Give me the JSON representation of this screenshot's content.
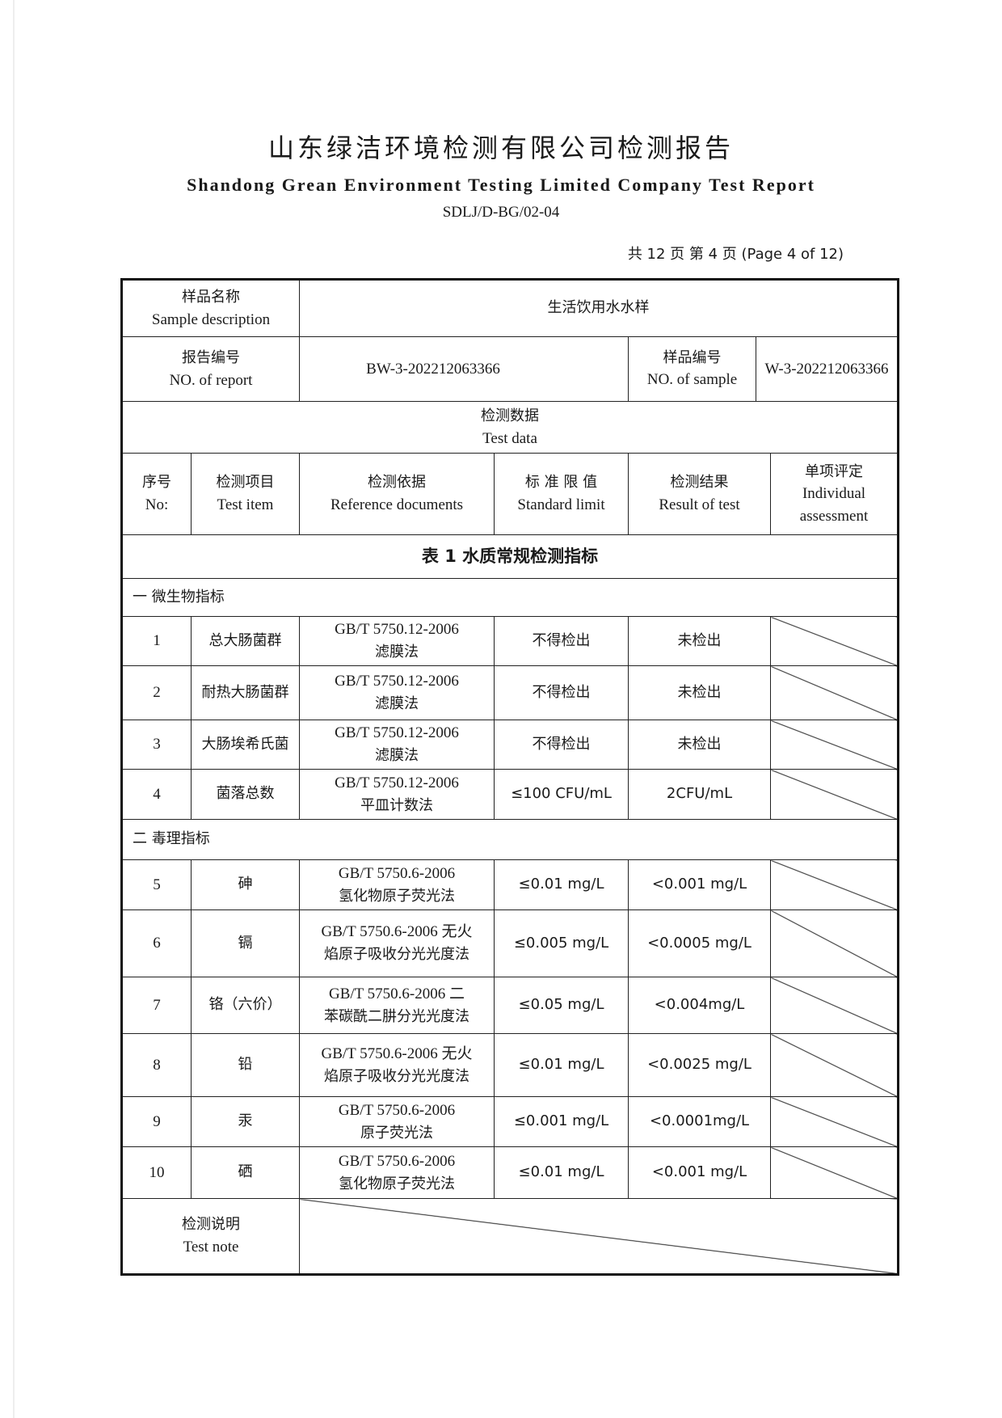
{
  "header": {
    "title_cn": "山东绿洁环境检测有限公司检测报告",
    "title_en": "Shandong Grean Environment Testing Limited Company Test Report",
    "doc_code": "SDLJ/D-BG/02-04",
    "page_info": "共 12 页  第 4 页  (Page 4 of 12)"
  },
  "info": {
    "sample_desc_label_cn": "样品名称",
    "sample_desc_label_en": "Sample description",
    "sample_desc_value": "生活饮用水水样",
    "report_no_label_cn": "报告编号",
    "report_no_label_en": "NO. of report",
    "report_no_value": "BW-3-202212063366",
    "sample_no_label_cn": "样品编号",
    "sample_no_label_en": "NO. of sample",
    "sample_no_value": "W-3-202212063366",
    "test_data_cn": "检测数据",
    "test_data_en": "Test data"
  },
  "columns": [
    {
      "cn": "序号",
      "en": "No:"
    },
    {
      "cn": "检测项目",
      "en": "Test item"
    },
    {
      "cn": "检测依据",
      "en": "Reference documents"
    },
    {
      "cn": "标 准 限 值",
      "en": "Standard limit"
    },
    {
      "cn": "检测结果",
      "en": "Result of test"
    },
    {
      "cn": "单项评定",
      "en": "Individual assessment"
    }
  ],
  "table_title": "表 1  水质常规检测指标",
  "sections": [
    {
      "name": "一  微生物指标",
      "rows": [
        {
          "no": "1",
          "item": "总大肠菌群",
          "ref1": "GB/T 5750.12-2006",
          "ref2": "滤膜法",
          "limit": "不得检出",
          "result": "未检出"
        },
        {
          "no": "2",
          "item": "耐热大肠菌群",
          "ref1": "GB/T 5750.12-2006",
          "ref2": "滤膜法",
          "limit": "不得检出",
          "result": "未检出"
        },
        {
          "no": "3",
          "item": "大肠埃希氏菌",
          "ref1": "GB/T 5750.12-2006",
          "ref2": "滤膜法",
          "limit": "不得检出",
          "result": "未检出"
        },
        {
          "no": "4",
          "item": "菌落总数",
          "ref1": "GB/T 5750.12-2006",
          "ref2": "平皿计数法",
          "limit": "≤100 CFU/mL",
          "result": "2CFU/mL"
        }
      ]
    },
    {
      "name": "二  毒理指标",
      "rows": [
        {
          "no": "5",
          "item": "砷",
          "ref1": "GB/T 5750.6-2006",
          "ref2": "氢化物原子荧光法",
          "limit": "≤0.01 mg/L",
          "result": "<0.001 mg/L"
        },
        {
          "no": "6",
          "item": "镉",
          "ref1": "GB/T 5750.6-2006 无火",
          "ref2": "焰原子吸收分光光度法",
          "limit": "≤0.005 mg/L",
          "result": "<0.0005 mg/L"
        },
        {
          "no": "7",
          "item": "铬（六价）",
          "ref1": "GB/T 5750.6-2006 二",
          "ref2": "苯碳酰二肼分光光度法",
          "limit": "≤0.05 mg/L",
          "result": "<0.004mg/L"
        },
        {
          "no": "8",
          "item": "铅",
          "ref1": "GB/T 5750.6-2006 无火",
          "ref2": "焰原子吸收分光光度法",
          "limit": "≤0.01 mg/L",
          "result": "<0.0025 mg/L"
        },
        {
          "no": "9",
          "item": "汞",
          "ref1": "GB/T 5750.6-2006",
          "ref2": "原子荧光法",
          "limit": "≤0.001 mg/L",
          "result": "<0.0001mg/L"
        },
        {
          "no": "10",
          "item": "硒",
          "ref1": "GB/T 5750.6-2006",
          "ref2": "氢化物原子荧光法",
          "limit": "≤0.01 mg/L",
          "result": "<0.001 mg/L"
        }
      ]
    }
  ],
  "note": {
    "label_cn": "检测说明",
    "label_en": "Test note"
  }
}
